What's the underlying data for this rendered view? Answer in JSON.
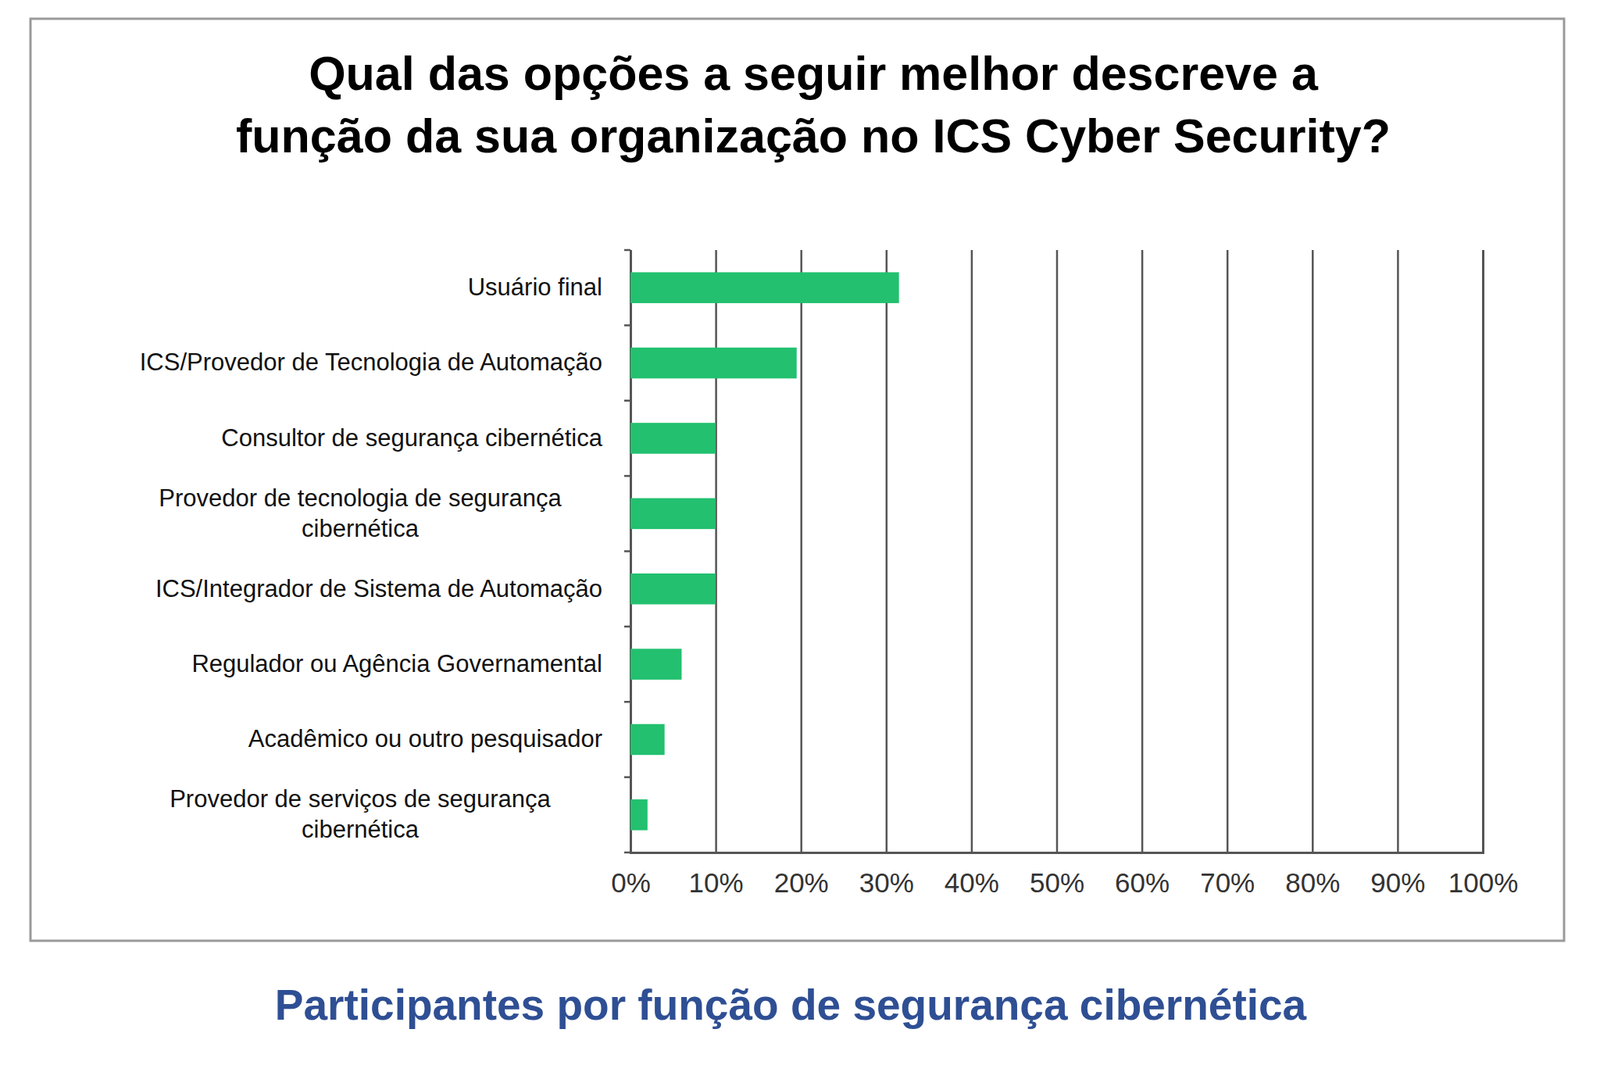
{
  "chart_data": {
    "type": "bar",
    "orientation": "horizontal",
    "title": "Qual das opções a seguir melhor descreve a\nfunção da sua organização no ICS Cyber Security?",
    "caption": "Participantes por função de segurança cibernética",
    "categories": [
      "Usuário final",
      "ICS/Provedor de Tecnologia de Automação",
      "Consultor de segurança cibernética",
      "Provedor de tecnologia de segurança\ncibernética",
      "ICS/Integrador de Sistema de Automação",
      "Regulador ou Agência Governamental",
      "Acadêmico ou outro pesquisador",
      "Provedor de serviços de segurança\ncibernética"
    ],
    "values": [
      31.5,
      19.5,
      10,
      10,
      10,
      6,
      4,
      2
    ],
    "color": "#22c06f",
    "xlim": [
      0,
      100
    ],
    "xticks": [
      {
        "value": 0,
        "label": "0%"
      },
      {
        "value": 10,
        "label": "10%"
      },
      {
        "value": 20,
        "label": "20%"
      },
      {
        "value": 30,
        "label": "30%"
      },
      {
        "value": 40,
        "label": "40%"
      },
      {
        "value": 50,
        "label": "50%"
      },
      {
        "value": 60,
        "label": "60%"
      },
      {
        "value": 70,
        "label": "70%"
      },
      {
        "value": 80,
        "label": "80%"
      },
      {
        "value": 90,
        "label": "90%"
      },
      {
        "value": 100,
        "label": "100%"
      }
    ],
    "grid": true
  }
}
